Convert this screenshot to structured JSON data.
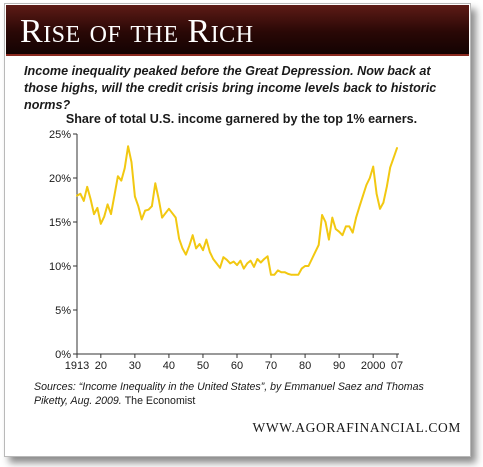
{
  "header": {
    "title": "Rise of the Rich"
  },
  "subtitle": "Income inequality peaked before the Great Depression. Now back at those highs, will the credit crisis bring income levels back to historic norms?",
  "chart_data": {
    "type": "line",
    "title": "Share of total U.S. income garnered by the top 1% earners.",
    "xlabel": "",
    "ylabel": "",
    "xlim": [
      1913,
      2007
    ],
    "ylim": [
      0,
      25
    ],
    "grid": false,
    "legend": "none",
    "x_ticks": [
      1913,
      1920,
      1930,
      1940,
      1950,
      1960,
      1970,
      1980,
      1990,
      2000,
      2007
    ],
    "x_tick_labels": [
      "1913",
      "20",
      "30",
      "40",
      "50",
      "60",
      "70",
      "80",
      "90",
      "2000",
      "07"
    ],
    "y_ticks": [
      0,
      5,
      10,
      15,
      20,
      25
    ],
    "y_tick_labels": [
      "0%",
      "5%",
      "10%",
      "15%",
      "20%",
      "25%"
    ],
    "line_color": "#f2c811",
    "series": [
      {
        "x": [
          1913,
          1914,
          1915,
          1916,
          1917,
          1918,
          1919,
          1920,
          1921,
          1922,
          1923,
          1924,
          1925,
          1926,
          1927,
          1928,
          1929,
          1930,
          1931,
          1932,
          1933,
          1934,
          1935,
          1936,
          1937,
          1938,
          1939,
          1940,
          1941,
          1942,
          1943,
          1944,
          1945,
          1946,
          1947,
          1948,
          1949,
          1950,
          1951,
          1952,
          1953,
          1954,
          1955,
          1956,
          1957,
          1958,
          1959,
          1960,
          1961,
          1962,
          1963,
          1964,
          1965,
          1966,
          1967,
          1968,
          1969,
          1970,
          1971,
          1972,
          1973,
          1974,
          1975,
          1976,
          1977,
          1978,
          1979,
          1980,
          1981,
          1982,
          1983,
          1984,
          1985,
          1986,
          1987,
          1988,
          1989,
          1990,
          1991,
          1992,
          1993,
          1994,
          1995,
          1996,
          1997,
          1998,
          1999,
          2000,
          2001,
          2002,
          2003,
          2004,
          2005,
          2006,
          2007
        ],
        "values": [
          18.0,
          18.2,
          17.4,
          19.0,
          17.6,
          15.9,
          16.6,
          14.8,
          15.6,
          17.0,
          15.9,
          18.0,
          20.2,
          19.7,
          21.1,
          23.6,
          21.8,
          17.9,
          16.8,
          15.3,
          16.3,
          16.4,
          16.8,
          19.4,
          17.6,
          15.5,
          16.0,
          16.5,
          16.0,
          15.5,
          13.1,
          12.0,
          11.3,
          12.3,
          13.5,
          12.0,
          12.5,
          11.8,
          13.0,
          11.6,
          10.8,
          10.3,
          9.8,
          11.0,
          10.7,
          10.3,
          10.5,
          10.1,
          10.6,
          9.7,
          10.3,
          10.6,
          9.9,
          10.8,
          10.4,
          10.8,
          11.1,
          9.0,
          9.0,
          9.5,
          9.3,
          9.3,
          9.1,
          9.0,
          9.0,
          9.0,
          9.7,
          10.0,
          10.0,
          10.8,
          11.6,
          12.4,
          15.8,
          15.0,
          13.0,
          15.5,
          14.2,
          13.9,
          13.5,
          14.5,
          14.5,
          13.8,
          15.5,
          16.8,
          18.0,
          19.2,
          20.0,
          21.3,
          18.2,
          16.5,
          17.2,
          19.0,
          21.2,
          22.3,
          23.4
        ]
      }
    ]
  },
  "sources": {
    "text": "Sources: “Income Inequality in the United States”, by Emmanuel Saez and Thomas Piketty, Aug. 2009.",
    "journal": "The Economist"
  },
  "website": "WWW.AGORAFINANCIAL.COM"
}
